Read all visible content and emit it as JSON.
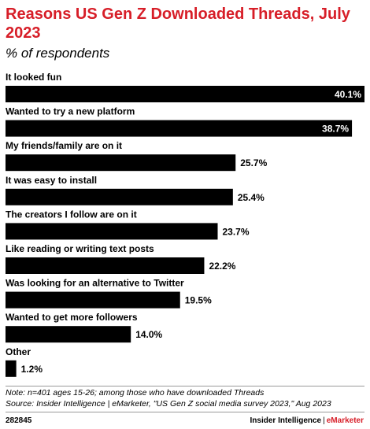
{
  "header": {
    "title": "Reasons US Gen Z Downloaded Threads, July 2023",
    "subtitle": "% of respondents"
  },
  "chart_data": {
    "type": "bar",
    "orientation": "horizontal",
    "title": "Reasons US Gen Z Downloaded Threads, July 2023",
    "subtitle": "% of respondents",
    "categories": [
      "It looked fun",
      "Wanted to try a new platform",
      "My friends/family are on it",
      "It was easy to install",
      "The creators I follow are on it",
      "Like reading or writing text posts",
      "Was looking for an alternative to Twitter",
      "Wanted to get more followers",
      "Other"
    ],
    "values": [
      40.1,
      38.7,
      25.7,
      25.4,
      23.7,
      22.2,
      19.5,
      14.0,
      1.2
    ],
    "value_labels": [
      "40.1%",
      "38.7%",
      "25.7%",
      "25.4%",
      "23.7%",
      "22.2%",
      "19.5%",
      "14.0%",
      "1.2%"
    ],
    "bar_color": "#000000",
    "grid": false,
    "legend": "none",
    "xlim": [
      0,
      40.1
    ]
  },
  "footer": {
    "note": "Note: n=401 ages 15-26; among those who have downloaded Threads",
    "source": "Source: Insider Intelligence | eMarketer, \"US Gen Z social media survey 2023,\" Aug 2023",
    "chart_id": "282845",
    "brand_main": "Insider Intelligence",
    "brand_sep": "|",
    "brand_accent": "eMarketer",
    "accent_color": "#d71e28"
  }
}
